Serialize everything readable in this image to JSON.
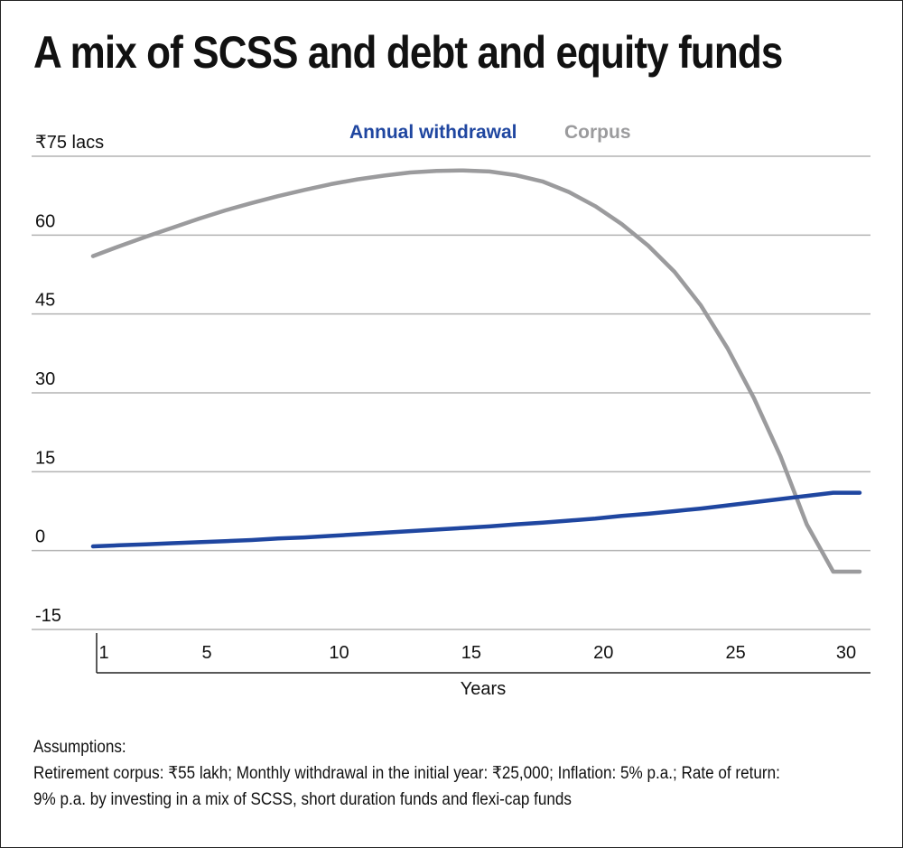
{
  "title": "A mix of SCSS and debt and equity funds",
  "notes": {
    "heading": "Assumptions:",
    "text": "Retirement corpus: ₹55 lakh; Monthly withdrawal in the initial year: ₹25,000; Inflation: 5% p.a.; Rate of return: 9% p.a. by investing in a mix of SCSS, short duration funds and flexi-cap funds"
  },
  "chart_data": {
    "type": "line",
    "ylabel": "₹75 lacs",
    "xlabel": "Years",
    "xlim": [
      1,
      30
    ],
    "ylim": [
      -15,
      75
    ],
    "y_ticks": [
      -15,
      0,
      15,
      30,
      45,
      60,
      75
    ],
    "y_tick_labels": [
      "-15",
      "0",
      "15",
      "30",
      "45",
      "60",
      "₹75 lacs"
    ],
    "x_ticks": [
      1,
      5,
      10,
      15,
      20,
      25,
      30
    ],
    "x_tick_labels": [
      "1",
      "5",
      "10",
      "15",
      "20",
      "25",
      "30"
    ],
    "grid": "horizontal",
    "legend_placement": "top-center",
    "x": [
      1,
      2,
      3,
      4,
      5,
      6,
      7,
      8,
      9,
      10,
      11,
      12,
      13,
      14,
      15,
      16,
      17,
      18,
      19,
      20,
      21,
      22,
      23,
      24,
      25,
      26,
      27,
      28,
      29,
      30
    ],
    "series": [
      {
        "name": "Annual withdrawal",
        "color": "#1f46a0",
        "values": [
          0.8,
          1.0,
          1.2,
          1.4,
          1.6,
          1.8,
          2.0,
          2.3,
          2.5,
          2.8,
          3.1,
          3.4,
          3.7,
          4.0,
          4.3,
          4.6,
          5.0,
          5.3,
          5.7,
          6.1,
          6.6,
          7.0,
          7.5,
          8.0,
          8.6,
          9.2,
          9.8,
          10.4,
          11.0,
          11.0
        ]
      },
      {
        "name": "Corpus",
        "color": "#9b9b9d",
        "values": [
          56.0,
          57.9,
          59.7,
          61.4,
          63.1,
          64.7,
          66.1,
          67.4,
          68.6,
          69.7,
          70.6,
          71.3,
          71.9,
          72.2,
          72.3,
          72.1,
          71.4,
          70.2,
          68.2,
          65.5,
          62.1,
          58.0,
          53.0,
          46.6,
          38.5,
          29.0,
          18.0,
          5.0,
          -4.0,
          -4.0
        ]
      }
    ]
  }
}
